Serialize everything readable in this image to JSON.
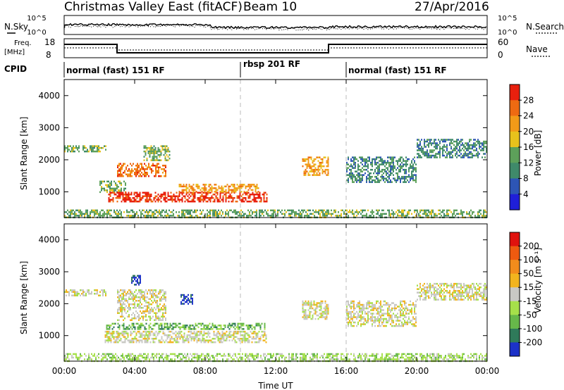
{
  "header": {
    "title": "Christmas Valley East (fitACF)",
    "beam": "Beam 10",
    "date": "27/Apr/2016"
  },
  "top_panels": {
    "nsky_label": "N.Sky",
    "nsearch_label": "N.Search",
    "noise_ticks": [
      "10^5",
      "10^0"
    ],
    "freq_label": "Freq.",
    "freq_unit": "[MHz]",
    "freq_ticks": [
      "18",
      "8"
    ],
    "nave_label": "Nave",
    "nave_ticks": [
      "60",
      "0"
    ],
    "cpid_label": "CPID"
  },
  "cpid_modes": [
    {
      "label": "normal (fast) 151 RF",
      "start": 0
    },
    {
      "label": "rbsp 201 RF",
      "start": 10
    },
    {
      "label": "normal (fast) 151 RF",
      "start": 16
    }
  ],
  "colorbars": {
    "power": {
      "label": "Power [dB]",
      "ticks": [
        "28",
        "24",
        "20",
        "16",
        "12",
        "8",
        "4"
      ]
    },
    "velocity": {
      "label": "Velocity [m s⁻¹]",
      "ticks": [
        "200",
        "100",
        "50",
        "15",
        "-15",
        "-50",
        "-100",
        "-200"
      ]
    }
  },
  "colors": {
    "power_scale": [
      "#1f1fd8",
      "#2d55b5",
      "#3f8a6a",
      "#5da05a",
      "#e8c21c",
      "#f29a18",
      "#ee6a12",
      "#e8200e"
    ],
    "velocity_scale": [
      "#1c32c8",
      "#2f7a5a",
      "#67b84a",
      "#a6e04a",
      "#c8c8c4",
      "#f2b41e",
      "#f28c1c",
      "#ee5a10",
      "#e0120e"
    ]
  },
  "chart_data": [
    {
      "type": "heatmap",
      "name": "power",
      "ylabel": "Slant Range [km]",
      "xlabel": "",
      "x_ticks": [
        "00:00",
        "04:00",
        "08:00",
        "12:00",
        "16:00",
        "20:00",
        "00:00"
      ],
      "y_ticks": [
        "1000",
        "2000",
        "3000",
        "4000"
      ],
      "xlim": [
        0,
        24
      ],
      "ylim": [
        200,
        4500
      ],
      "echo_regions": [
        {
          "t0": 0.0,
          "t1": 2.4,
          "r0": 2250,
          "r1": 2450,
          "level": 3
        },
        {
          "t0": 3.0,
          "t1": 5.8,
          "r0": 1500,
          "r1": 1900,
          "level": 6
        },
        {
          "t0": 4.5,
          "t1": 6.0,
          "r0": 2000,
          "r1": 2450,
          "level": 3
        },
        {
          "t0": 2.0,
          "t1": 3.5,
          "r0": 1000,
          "r1": 1350,
          "level": 3
        },
        {
          "t0": 2.5,
          "t1": 11.5,
          "r0": 700,
          "r1": 1000,
          "level": 7
        },
        {
          "t0": 6.5,
          "t1": 11.0,
          "r0": 1000,
          "r1": 1250,
          "level": 5
        },
        {
          "t0": 13.5,
          "t1": 15.0,
          "r0": 1500,
          "r1": 2100,
          "level": 5
        },
        {
          "t0": 16.0,
          "t1": 20.0,
          "r0": 1300,
          "r1": 2100,
          "level": 2
        },
        {
          "t0": 20.0,
          "t1": 24.0,
          "r0": 2100,
          "r1": 2650,
          "level": 2
        },
        {
          "t0": 0.0,
          "t1": 24.0,
          "r0": 200,
          "r1": 450,
          "level": 3
        }
      ]
    },
    {
      "type": "heatmap",
      "name": "velocity",
      "ylabel": "Slant Range [km]",
      "xlabel": "Time UT",
      "x_ticks": [
        "00:00",
        "04:00",
        "08:00",
        "12:00",
        "16:00",
        "20:00",
        "00:00"
      ],
      "y_ticks": [
        "1000",
        "2000",
        "3000",
        "4000"
      ],
      "xlim": [
        0,
        24
      ],
      "ylim": [
        200,
        4500
      ],
      "echo_regions": [
        {
          "t0": 0.0,
          "t1": 2.4,
          "r0": 2250,
          "r1": 2450,
          "level": 4
        },
        {
          "t0": 3.0,
          "t1": 5.8,
          "r0": 1500,
          "r1": 2450,
          "level": 4
        },
        {
          "t0": 3.8,
          "t1": 4.3,
          "r0": 2600,
          "r1": 2900,
          "level": 0
        },
        {
          "t0": 6.6,
          "t1": 7.3,
          "r0": 2000,
          "r1": 2300,
          "level": 0
        },
        {
          "t0": 2.3,
          "t1": 11.5,
          "r0": 800,
          "r1": 1150,
          "level": 4
        },
        {
          "t0": 2.3,
          "t1": 11.5,
          "r0": 1200,
          "r1": 1400,
          "level": 2
        },
        {
          "t0": 13.5,
          "t1": 15.0,
          "r0": 1500,
          "r1": 2100,
          "level": 4
        },
        {
          "t0": 16.0,
          "t1": 20.0,
          "r0": 1300,
          "r1": 2100,
          "level": 4
        },
        {
          "t0": 20.0,
          "t1": 24.0,
          "r0": 2100,
          "r1": 2650,
          "level": 4
        },
        {
          "t0": 0.0,
          "t1": 24.0,
          "r0": 200,
          "r1": 450,
          "level": 3
        }
      ]
    }
  ]
}
